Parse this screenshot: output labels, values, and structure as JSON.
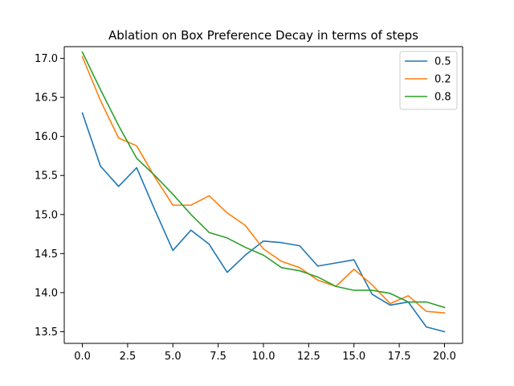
{
  "chart_data": {
    "type": "line",
    "title": "Ablation on Box Preference Decay in terms of steps",
    "xlabel": "",
    "ylabel": "",
    "xlim": [
      -1,
      21
    ],
    "ylim": [
      13.35,
      17.15
    ],
    "xticks": [
      0.0,
      2.5,
      5.0,
      7.5,
      10.0,
      12.5,
      15.0,
      17.5,
      20.0
    ],
    "xtick_labels": [
      "0.0",
      "2.5",
      "5.0",
      "7.5",
      "10.0",
      "12.5",
      "15.0",
      "17.5",
      "20.0"
    ],
    "yticks": [
      13.5,
      14.0,
      14.5,
      15.0,
      15.5,
      16.0,
      16.5,
      17.0
    ],
    "ytick_labels": [
      "13.5",
      "14.0",
      "14.5",
      "15.0",
      "15.5",
      "16.0",
      "16.5",
      "17.0"
    ],
    "grid": false,
    "legend_position": "top-right",
    "x": [
      0,
      1,
      2,
      3,
      4,
      5,
      6,
      7,
      8,
      9,
      10,
      11,
      12,
      13,
      14,
      15,
      16,
      17,
      18,
      19,
      20
    ],
    "series": [
      {
        "name": "0.5",
        "color": "#1f77b4",
        "values": [
          16.3,
          15.62,
          15.36,
          15.6,
          15.06,
          14.54,
          14.8,
          14.62,
          14.26,
          14.48,
          14.66,
          14.64,
          14.6,
          14.34,
          14.38,
          14.42,
          13.98,
          13.84,
          13.88,
          13.56,
          13.5
        ]
      },
      {
        "name": "0.2",
        "color": "#ff7f0e",
        "values": [
          17.02,
          16.46,
          15.98,
          15.88,
          15.48,
          15.12,
          15.12,
          15.24,
          15.02,
          14.86,
          14.56,
          14.4,
          14.32,
          14.16,
          14.08,
          14.3,
          14.1,
          13.86,
          13.96,
          13.76,
          13.74
        ]
      },
      {
        "name": "0.8",
        "color": "#2ca02c",
        "values": [
          17.08,
          16.6,
          16.14,
          15.72,
          15.5,
          15.26,
          15.0,
          14.77,
          14.7,
          14.58,
          14.48,
          14.32,
          14.28,
          14.2,
          14.08,
          14.03,
          14.03,
          13.99,
          13.88,
          13.88,
          13.81
        ]
      }
    ]
  }
}
